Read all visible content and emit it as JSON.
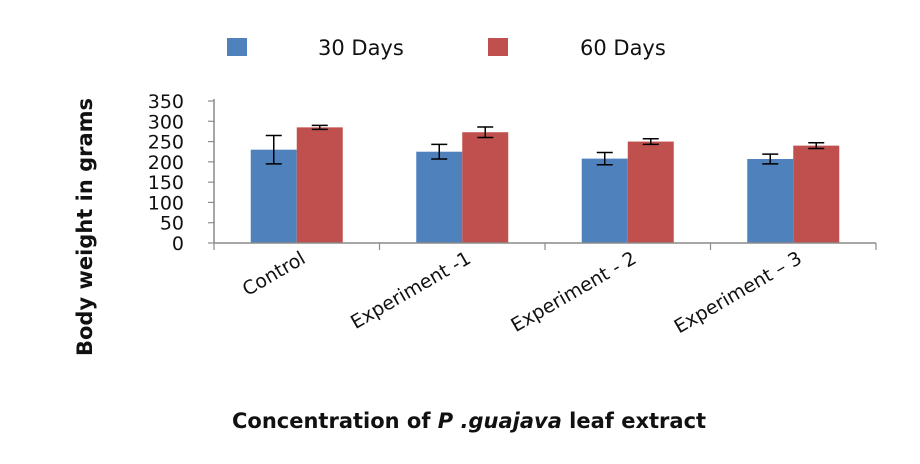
{
  "chart_data": {
    "type": "bar",
    "categories": [
      "Control",
      "Experiment -1",
      "Experiment - 2",
      "Experiment – 3"
    ],
    "series": [
      {
        "name": "30 Days",
        "values": [
          230,
          225,
          208,
          207
        ],
        "errors": [
          35,
          18,
          15,
          12
        ],
        "color": "#4f81bd"
      },
      {
        "name": "60 Days",
        "values": [
          285,
          273,
          250,
          240
        ],
        "errors": [
          5,
          13,
          7,
          7
        ],
        "color": "#c0504d"
      }
    ],
    "ylim": [
      0,
      350
    ],
    "yticks": [
      "0",
      "50",
      "100",
      "150",
      "200",
      "250",
      "300",
      "350"
    ],
    "ylabel": "Body weight in grams",
    "xlabel_parts": [
      "Concentration of ",
      "P .guajava",
      " leaf extract"
    ],
    "legend_position": "top"
  }
}
